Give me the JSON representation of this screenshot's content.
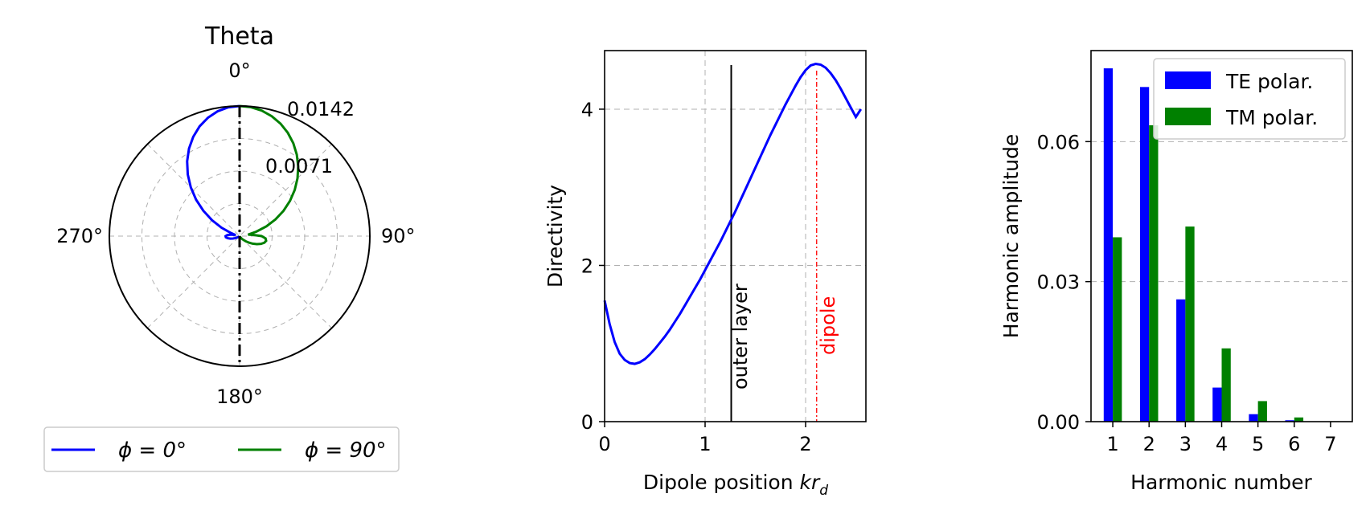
{
  "chart_data": [
    {
      "type": "polar",
      "title": "Theta",
      "angle_labels": [
        "0°",
        "90°",
        "180°",
        "270°"
      ],
      "radial_labels": [
        "0.0071",
        "0.0142"
      ],
      "rmax": 0.0142,
      "series": [
        {
          "name": "ϕ = 0°",
          "color": "#0000ff",
          "theta_deg": [
            0,
            5,
            10,
            15,
            20,
            25,
            30,
            35,
            40,
            45,
            50,
            55,
            60,
            65,
            70,
            75,
            80,
            85,
            90,
            95,
            100,
            105,
            110,
            115,
            120,
            125,
            130,
            135,
            140,
            145,
            150,
            155,
            160,
            165,
            170,
            175,
            180
          ],
          "r": [
            0.0142,
            0.01411,
            0.01383,
            0.01337,
            0.01275,
            0.01196,
            0.01103,
            0.00997,
            0.00879,
            0.00752,
            0.00619,
            0.00482,
            0.00346,
            0.00217,
            0.00102,
            0.00044,
            0.00092,
            0.00135,
            0.00153,
            0.0015,
            0.00132,
            0.00105,
            0.00077,
            0.00051,
            0.00031,
            0.00017,
            8e-05,
            4e-05,
            2e-05,
            1e-05,
            0,
            0,
            0,
            0,
            0,
            0,
            0
          ]
        },
        {
          "name": "ϕ = 90°",
          "color": "#008000",
          "theta_deg": [
            0,
            5,
            10,
            15,
            20,
            25,
            30,
            35,
            40,
            45,
            50,
            55,
            60,
            65,
            70,
            75,
            80,
            85,
            90,
            95,
            100,
            105,
            110,
            115,
            120,
            125,
            130,
            135,
            140,
            145,
            150,
            155,
            160,
            165,
            170,
            175,
            180
          ],
          "r": [
            0.0142,
            0.01413,
            0.01391,
            0.01355,
            0.01306,
            0.01244,
            0.01171,
            0.01087,
            0.00994,
            0.00893,
            0.00785,
            0.00671,
            0.00553,
            0.00432,
            0.00311,
            0.0019,
            0.00094,
            0.00152,
            0.0024,
            0.00284,
            0.00294,
            0.00279,
            0.00248,
            0.00208,
            0.00165,
            0.00124,
            0.00088,
            0.00058,
            0.00036,
            0.0002,
            0.0001,
            4e-05,
            1e-05,
            0,
            0,
            0,
            0
          ]
        }
      ],
      "legend": {
        "placement": "bottom",
        "entries": [
          "ϕ = 0°",
          "ϕ = 90°"
        ]
      }
    },
    {
      "type": "line",
      "xlabel": "Dipole position kr_d",
      "ylabel": "Directivity",
      "xlim": [
        0,
        2.6
      ],
      "ylim": [
        0,
        4.75
      ],
      "xticks": [
        0,
        1,
        2
      ],
      "yticks": [
        0,
        2,
        4
      ],
      "grid": true,
      "series": [
        {
          "color": "#0000ff",
          "x": [
            0,
            0.05,
            0.1,
            0.15,
            0.2,
            0.25,
            0.3,
            0.35,
            0.4,
            0.45,
            0.5,
            0.55,
            0.6,
            0.65,
            0.7,
            0.75,
            0.8,
            0.85,
            0.9,
            0.95,
            1.0,
            1.05,
            1.1,
            1.15,
            1.2,
            1.25,
            1.3,
            1.35,
            1.4,
            1.45,
            1.5,
            1.55,
            1.6,
            1.65,
            1.7,
            1.75,
            1.8,
            1.85,
            1.9,
            1.95,
            2.0,
            2.05,
            2.1,
            2.15,
            2.2,
            2.25,
            2.3,
            2.35,
            2.4,
            2.45,
            2.5,
            2.55
          ],
          "y": [
            1.55,
            1.25,
            1.02,
            0.87,
            0.79,
            0.75,
            0.74,
            0.76,
            0.8,
            0.86,
            0.93,
            1.01,
            1.09,
            1.18,
            1.28,
            1.38,
            1.49,
            1.6,
            1.71,
            1.82,
            1.94,
            2.06,
            2.18,
            2.3,
            2.43,
            2.56,
            2.69,
            2.83,
            2.97,
            3.11,
            3.25,
            3.39,
            3.53,
            3.67,
            3.8,
            3.93,
            4.06,
            4.18,
            4.3,
            4.41,
            4.5,
            4.56,
            4.58,
            4.57,
            4.53,
            4.46,
            4.37,
            4.26,
            4.14,
            4.02,
            3.9,
            4.0
          ]
        }
      ],
      "vlines": [
        {
          "x": 1.26,
          "label": "outer layer",
          "color": "#000000"
        },
        {
          "x": 2.11,
          "label": "dipole",
          "color": "#ff0000"
        }
      ]
    },
    {
      "type": "bar",
      "xlabel": "Harmonic number",
      "ylabel": "Harmonic amplitude",
      "categories": [
        1,
        2,
        3,
        4,
        5,
        6,
        7
      ],
      "ylim": [
        0,
        0.0795
      ],
      "yticks": [
        "0.00",
        "0.03",
        "0.06"
      ],
      "grid": true,
      "legend": {
        "placement": "top-right"
      },
      "series": [
        {
          "name": "TE polar.",
          "color": "#0000ff",
          "values": [
            0.0757,
            0.0717,
            0.0262,
            0.0073,
            0.0016,
            0.0003,
            0.0
          ]
        },
        {
          "name": "TM polar.",
          "color": "#008000",
          "values": [
            0.0395,
            0.0635,
            0.0418,
            0.0157,
            0.0044,
            0.0009,
            0.0001
          ]
        }
      ]
    }
  ]
}
